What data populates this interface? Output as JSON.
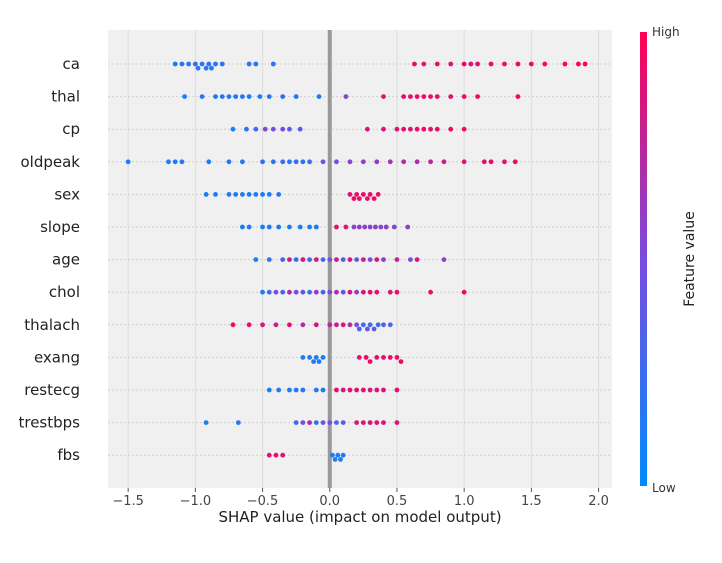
{
  "chart_data": {
    "type": "scatter",
    "subtype": "shap-beeswarm",
    "xlabel": "SHAP value (impact on model output)",
    "xlim": [
      -1.65,
      2.1
    ],
    "xticks": [
      -1.5,
      -1.0,
      -0.5,
      0.0,
      0.5,
      1.0,
      1.5,
      2.0
    ],
    "xtick_labels": [
      "−1.5",
      "−1.0",
      "−0.5",
      "0.0",
      "0.5",
      "1.0",
      "1.5",
      "2.0"
    ],
    "colorbar": {
      "title": "Feature value",
      "high_label": "High",
      "low_label": "Low",
      "high_color": "#ff0052",
      "low_color": "#008bfb"
    },
    "series": [
      {
        "feature": "ca",
        "points": [
          [
            -1.15,
            0.1
          ],
          [
            -1.1,
            0.2
          ],
          [
            -1.05,
            0.15
          ],
          [
            -1.0,
            0.25
          ],
          [
            -0.98,
            0.2
          ],
          [
            -0.95,
            0.15
          ],
          [
            -0.92,
            0.22
          ],
          [
            -0.9,
            0.18
          ],
          [
            -0.88,
            0.12
          ],
          [
            -0.85,
            0.2
          ],
          [
            -0.8,
            0.15
          ],
          [
            -0.6,
            0.15
          ],
          [
            -0.55,
            0.18
          ],
          [
            -0.42,
            0.15
          ],
          [
            0.63,
            0.9
          ],
          [
            0.7,
            0.85
          ],
          [
            0.8,
            0.9
          ],
          [
            0.9,
            0.85
          ],
          [
            1.0,
            0.95
          ],
          [
            1.05,
            0.9
          ],
          [
            1.1,
            0.88
          ],
          [
            1.2,
            0.92
          ],
          [
            1.3,
            0.9
          ],
          [
            1.4,
            0.95
          ],
          [
            1.5,
            0.92
          ],
          [
            1.6,
            0.95
          ],
          [
            1.75,
            1.0
          ],
          [
            1.85,
            1.0
          ],
          [
            1.9,
            1.0
          ]
        ]
      },
      {
        "feature": "thal",
        "points": [
          [
            -1.08,
            0.1
          ],
          [
            -0.95,
            0.15
          ],
          [
            -0.85,
            0.1
          ],
          [
            -0.8,
            0.15
          ],
          [
            -0.75,
            0.12
          ],
          [
            -0.7,
            0.1
          ],
          [
            -0.65,
            0.15
          ],
          [
            -0.6,
            0.12
          ],
          [
            -0.52,
            0.12
          ],
          [
            -0.45,
            0.15
          ],
          [
            -0.35,
            0.18
          ],
          [
            -0.25,
            0.15
          ],
          [
            -0.08,
            0.1
          ],
          [
            0.12,
            0.55
          ],
          [
            0.4,
            0.85
          ],
          [
            0.55,
            0.9
          ],
          [
            0.6,
            0.92
          ],
          [
            0.65,
            0.95
          ],
          [
            0.7,
            0.92
          ],
          [
            0.75,
            0.9
          ],
          [
            0.8,
            0.92
          ],
          [
            0.9,
            0.9
          ],
          [
            1.0,
            0.92
          ],
          [
            1.1,
            0.95
          ],
          [
            1.4,
            0.95
          ]
        ]
      },
      {
        "feature": "cp",
        "points": [
          [
            -0.72,
            0.1
          ],
          [
            -0.62,
            0.2
          ],
          [
            -0.55,
            0.25
          ],
          [
            -0.48,
            0.55
          ],
          [
            -0.42,
            0.5
          ],
          [
            -0.35,
            0.45
          ],
          [
            -0.3,
            0.4
          ],
          [
            -0.22,
            0.35
          ],
          [
            0.28,
            0.85
          ],
          [
            0.4,
            0.9
          ],
          [
            0.5,
            0.9
          ],
          [
            0.55,
            0.92
          ],
          [
            0.6,
            0.9
          ],
          [
            0.65,
            0.92
          ],
          [
            0.7,
            0.95
          ],
          [
            0.75,
            0.9
          ],
          [
            0.8,
            0.92
          ],
          [
            0.9,
            0.95
          ],
          [
            1.0,
            0.95
          ]
        ]
      },
      {
        "feature": "oldpeak",
        "points": [
          [
            -1.5,
            0.1
          ],
          [
            -1.2,
            0.12
          ],
          [
            -1.15,
            0.1
          ],
          [
            -1.1,
            0.15
          ],
          [
            -0.9,
            0.12
          ],
          [
            -0.75,
            0.15
          ],
          [
            -0.65,
            0.15
          ],
          [
            -0.5,
            0.2
          ],
          [
            -0.42,
            0.2
          ],
          [
            -0.35,
            0.25
          ],
          [
            -0.3,
            0.15
          ],
          [
            -0.25,
            0.2
          ],
          [
            -0.2,
            0.15
          ],
          [
            -0.15,
            0.25
          ],
          [
            -0.05,
            0.4
          ],
          [
            0.05,
            0.5
          ],
          [
            0.15,
            0.55
          ],
          [
            0.25,
            0.6
          ],
          [
            0.35,
            0.6
          ],
          [
            0.45,
            0.65
          ],
          [
            0.55,
            0.7
          ],
          [
            0.65,
            0.7
          ],
          [
            0.75,
            0.75
          ],
          [
            0.85,
            0.8
          ],
          [
            1.0,
            0.85
          ],
          [
            1.15,
            0.9
          ],
          [
            1.2,
            0.95
          ],
          [
            1.3,
            0.9
          ],
          [
            1.38,
            0.92
          ]
        ]
      },
      {
        "feature": "sex",
        "points": [
          [
            -0.92,
            0.1
          ],
          [
            -0.85,
            0.15
          ],
          [
            -0.75,
            0.1
          ],
          [
            -0.7,
            0.15
          ],
          [
            -0.65,
            0.12
          ],
          [
            -0.6,
            0.1
          ],
          [
            -0.55,
            0.15
          ],
          [
            -0.5,
            0.1
          ],
          [
            -0.45,
            0.12
          ],
          [
            -0.38,
            0.15
          ],
          [
            0.15,
            0.9
          ],
          [
            0.18,
            0.95
          ],
          [
            0.2,
            0.9
          ],
          [
            0.22,
            0.92
          ],
          [
            0.25,
            0.95
          ],
          [
            0.28,
            0.9
          ],
          [
            0.3,
            0.92
          ],
          [
            0.33,
            0.95
          ],
          [
            0.36,
            0.9
          ]
        ]
      },
      {
        "feature": "slope",
        "points": [
          [
            -0.65,
            0.1
          ],
          [
            -0.6,
            0.15
          ],
          [
            -0.5,
            0.1
          ],
          [
            -0.45,
            0.12
          ],
          [
            -0.38,
            0.1
          ],
          [
            -0.3,
            0.15
          ],
          [
            -0.22,
            0.1
          ],
          [
            -0.15,
            0.12
          ],
          [
            -0.1,
            0.1
          ],
          [
            0.05,
            0.9
          ],
          [
            0.12,
            0.85
          ],
          [
            0.18,
            0.55
          ],
          [
            0.22,
            0.6
          ],
          [
            0.26,
            0.58
          ],
          [
            0.3,
            0.55
          ],
          [
            0.34,
            0.6
          ],
          [
            0.38,
            0.55
          ],
          [
            0.42,
            0.6
          ],
          [
            0.48,
            0.55
          ],
          [
            0.58,
            0.6
          ]
        ]
      },
      {
        "feature": "age",
        "points": [
          [
            -0.55,
            0.1
          ],
          [
            -0.45,
            0.2
          ],
          [
            -0.35,
            0.3
          ],
          [
            -0.3,
            0.8
          ],
          [
            -0.25,
            0.2
          ],
          [
            -0.2,
            0.85
          ],
          [
            -0.15,
            0.3
          ],
          [
            -0.1,
            0.8
          ],
          [
            -0.05,
            0.3
          ],
          [
            0.0,
            0.5
          ],
          [
            0.05,
            0.8
          ],
          [
            0.1,
            0.3
          ],
          [
            0.15,
            0.85
          ],
          [
            0.2,
            0.4
          ],
          [
            0.25,
            0.8
          ],
          [
            0.3,
            0.5
          ],
          [
            0.35,
            0.85
          ],
          [
            0.4,
            0.6
          ],
          [
            0.5,
            0.75
          ],
          [
            0.6,
            0.5
          ],
          [
            0.65,
            0.85
          ],
          [
            0.85,
            0.6
          ]
        ]
      },
      {
        "feature": "chol",
        "points": [
          [
            -0.5,
            0.1
          ],
          [
            -0.45,
            0.3
          ],
          [
            -0.4,
            0.5
          ],
          [
            -0.35,
            0.3
          ],
          [
            -0.3,
            0.7
          ],
          [
            -0.25,
            0.5
          ],
          [
            -0.2,
            0.4
          ],
          [
            -0.15,
            0.2
          ],
          [
            -0.1,
            0.6
          ],
          [
            -0.05,
            0.3
          ],
          [
            0.0,
            0.5
          ],
          [
            0.05,
            0.7
          ],
          [
            0.1,
            0.4
          ],
          [
            0.15,
            0.85
          ],
          [
            0.2,
            0.6
          ],
          [
            0.25,
            0.85
          ],
          [
            0.3,
            0.9
          ],
          [
            0.35,
            0.9
          ],
          [
            0.45,
            0.85
          ],
          [
            0.5,
            0.9
          ],
          [
            0.75,
            0.9
          ],
          [
            1.0,
            0.95
          ]
        ]
      },
      {
        "feature": "thalach",
        "points": [
          [
            -0.72,
            0.95
          ],
          [
            -0.6,
            0.9
          ],
          [
            -0.5,
            0.85
          ],
          [
            -0.4,
            0.8
          ],
          [
            -0.3,
            0.9
          ],
          [
            -0.2,
            0.7
          ],
          [
            -0.1,
            0.85
          ],
          [
            0.0,
            0.75
          ],
          [
            0.05,
            0.8
          ],
          [
            0.1,
            0.85
          ],
          [
            0.15,
            0.7
          ],
          [
            0.2,
            0.5
          ],
          [
            0.22,
            0.3
          ],
          [
            0.25,
            0.2
          ],
          [
            0.28,
            0.5
          ],
          [
            0.3,
            0.25
          ],
          [
            0.33,
            0.4
          ],
          [
            0.36,
            0.2
          ],
          [
            0.4,
            0.35
          ],
          [
            0.45,
            0.3
          ]
        ]
      },
      {
        "feature": "exang",
        "points": [
          [
            -0.2,
            0.12
          ],
          [
            -0.15,
            0.15
          ],
          [
            -0.12,
            0.1
          ],
          [
            -0.1,
            0.15
          ],
          [
            -0.08,
            0.12
          ],
          [
            -0.05,
            0.1
          ],
          [
            0.22,
            0.9
          ],
          [
            0.27,
            0.92
          ],
          [
            0.3,
            0.95
          ],
          [
            0.35,
            0.9
          ],
          [
            0.4,
            0.92
          ],
          [
            0.45,
            0.95
          ],
          [
            0.5,
            0.9
          ],
          [
            0.53,
            0.92
          ]
        ]
      },
      {
        "feature": "restecg",
        "points": [
          [
            -0.45,
            0.1
          ],
          [
            -0.38,
            0.15
          ],
          [
            -0.3,
            0.1
          ],
          [
            -0.25,
            0.12
          ],
          [
            -0.2,
            0.15
          ],
          [
            -0.1,
            0.12
          ],
          [
            -0.05,
            0.1
          ],
          [
            0.05,
            0.9
          ],
          [
            0.1,
            0.85
          ],
          [
            0.15,
            0.9
          ],
          [
            0.2,
            0.88
          ],
          [
            0.25,
            0.9
          ],
          [
            0.3,
            0.85
          ],
          [
            0.35,
            0.9
          ],
          [
            0.4,
            0.88
          ],
          [
            0.5,
            0.9
          ]
        ]
      },
      {
        "feature": "trestbps",
        "points": [
          [
            -0.92,
            0.1
          ],
          [
            -0.68,
            0.15
          ],
          [
            -0.25,
            0.3
          ],
          [
            -0.2,
            0.5
          ],
          [
            -0.15,
            0.7
          ],
          [
            -0.1,
            0.2
          ],
          [
            -0.05,
            0.4
          ],
          [
            0.0,
            0.5
          ],
          [
            0.05,
            0.3
          ],
          [
            0.1,
            0.4
          ],
          [
            0.2,
            0.85
          ],
          [
            0.25,
            0.9
          ],
          [
            0.3,
            0.85
          ],
          [
            0.35,
            0.9
          ],
          [
            0.4,
            0.88
          ],
          [
            0.5,
            0.9
          ]
        ]
      },
      {
        "feature": "fbs",
        "points": [
          [
            -0.45,
            0.9
          ],
          [
            -0.4,
            0.95
          ],
          [
            -0.35,
            0.9
          ],
          [
            0.02,
            0.1
          ],
          [
            0.04,
            0.15
          ],
          [
            0.06,
            0.1
          ],
          [
            0.08,
            0.12
          ],
          [
            0.1,
            0.1
          ]
        ]
      }
    ]
  }
}
